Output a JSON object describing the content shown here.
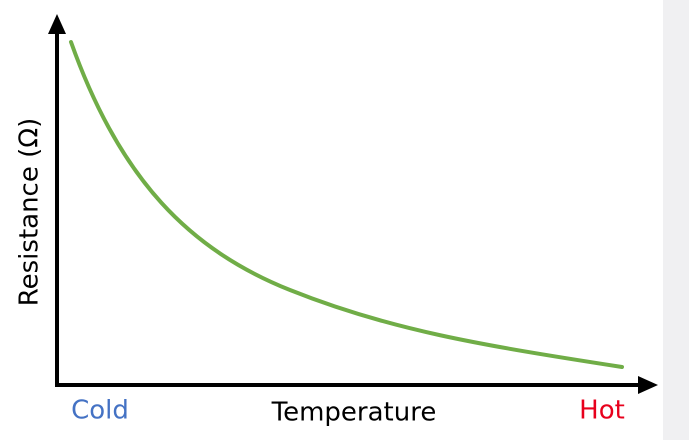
{
  "axes": {
    "y_label": "Resistance (Ω)",
    "x_label": "Temperature",
    "x_start_label": "Cold",
    "x_end_label": "Hot"
  }
}
